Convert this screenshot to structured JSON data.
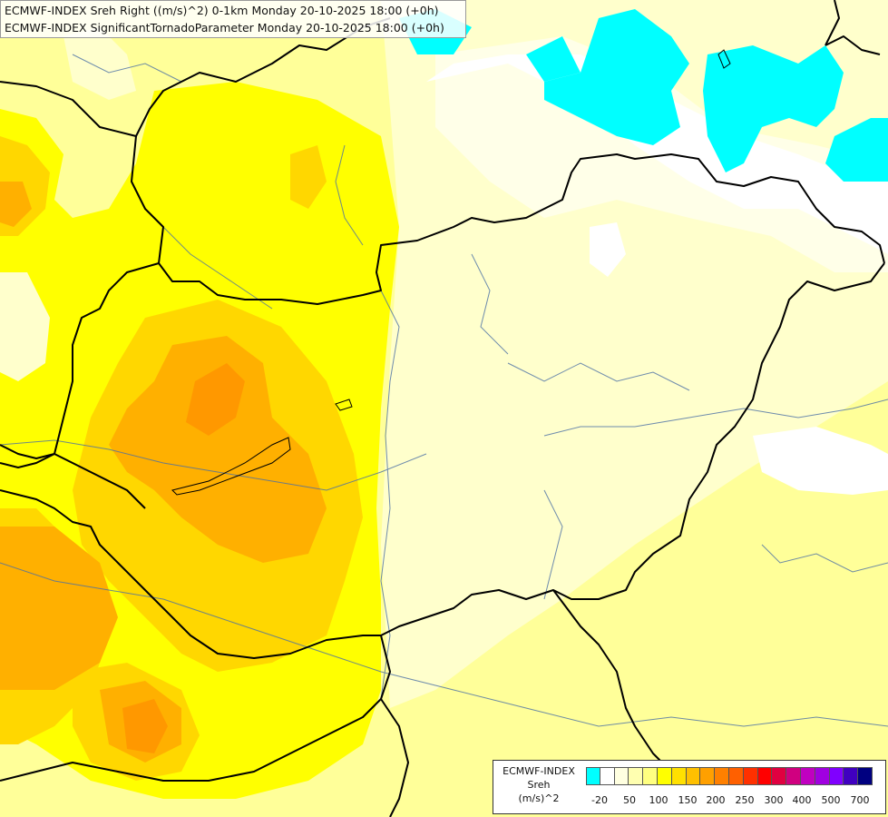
{
  "title": {
    "line1": "ECMWF-INDEX Sreh Right ((m/s)^2) 0-1km Monday 20-10-2025 18:00 (+0h)",
    "line2": "ECMWF-INDEX SignificantTornadoParameter Monday 20-10-2025 18:00 (+0h)"
  },
  "legend": {
    "line1": "ECMWF-INDEX",
    "line2": "Sreh",
    "line3": "(m/s)^2",
    "colors": [
      "#00ffff",
      "#ffffff",
      "#ffffe0",
      "#ffffb0",
      "#ffff80",
      "#ffff00",
      "#ffe000",
      "#ffc000",
      "#ffa000",
      "#ff8000",
      "#ff6000",
      "#ff3000",
      "#ff0000",
      "#e00040",
      "#d00080",
      "#c000c0",
      "#a000e0",
      "#8000ff",
      "#4000c0",
      "#000080"
    ],
    "ticks": [
      "-20",
      "50",
      "100",
      "150",
      "200",
      "250",
      "300",
      "400",
      "500",
      "700"
    ]
  }
}
